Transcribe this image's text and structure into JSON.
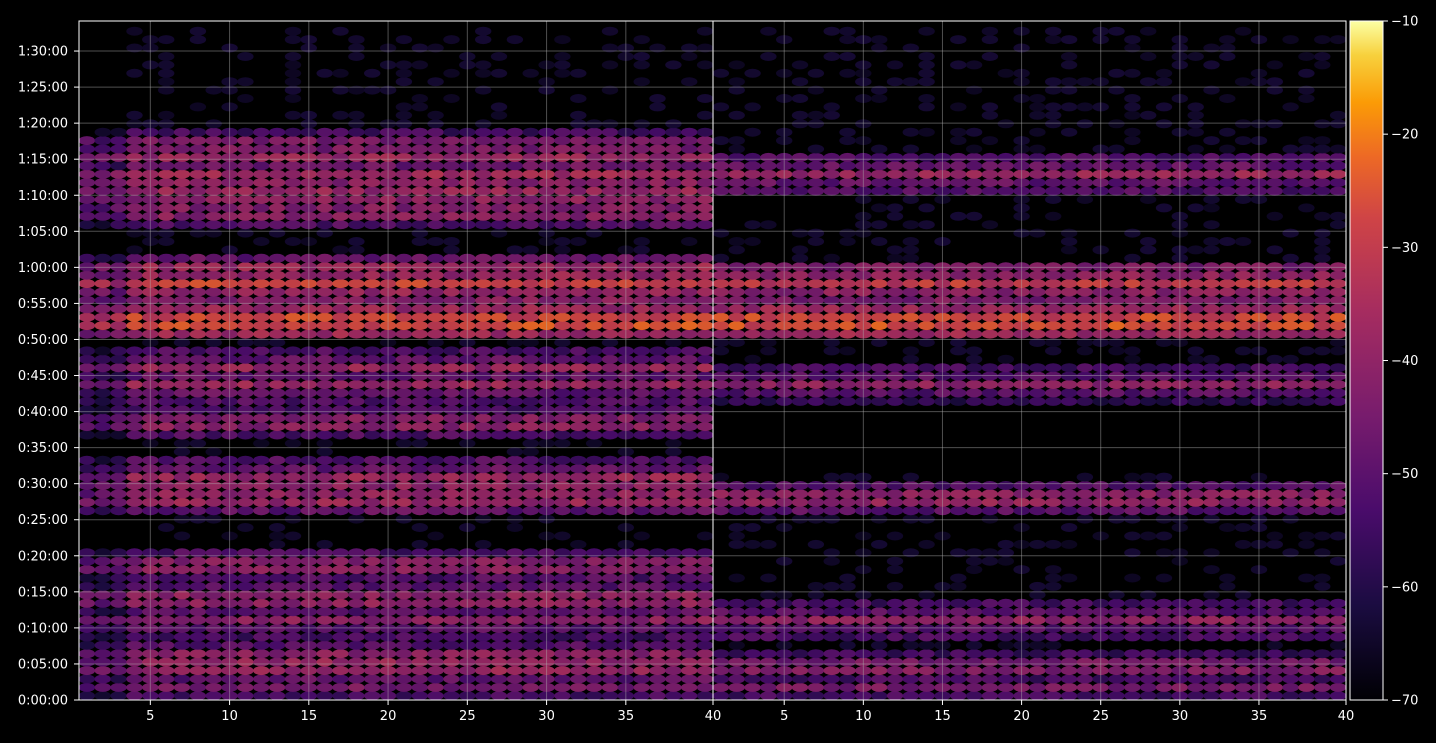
{
  "chart_data": {
    "type": "heatmap",
    "description_panels": 2,
    "panels": [
      {
        "name": "left",
        "x_ticks": [
          5,
          10,
          15,
          20,
          25,
          30,
          35,
          40
        ],
        "xlim": [
          1,
          40
        ],
        "high_rows": [
          {
            "t": 95,
            "v": -44
          },
          {
            "t": 258,
            "v": -38
          },
          {
            "t": 330,
            "v": -38
          },
          {
            "t": 660,
            "v": -40
          },
          {
            "t": 840,
            "v": -38
          },
          {
            "t": 1115,
            "v": -40
          },
          {
            "t": 1670,
            "v": -37
          },
          {
            "t": 1840,
            "v": -37
          },
          {
            "t": 2300,
            "v": -40
          },
          {
            "t": 2620,
            "v": -38
          },
          {
            "t": 2755,
            "v": -38
          },
          {
            "t": 3140,
            "v": -25
          },
          {
            "t": 3470,
            "v": -28
          },
          {
            "t": 3580,
            "v": -36
          },
          {
            "t": 4050,
            "v": -40
          },
          {
            "t": 4150,
            "v": -40
          },
          {
            "t": 4250,
            "v": -38
          },
          {
            "t": 4370,
            "v": -36
          },
          {
            "t": 4510,
            "v": -38
          },
          {
            "t": 4620,
            "v": -42
          }
        ]
      },
      {
        "name": "right",
        "x_ticks": [
          5,
          10,
          15,
          20,
          25,
          30,
          35,
          40
        ],
        "xlim": [
          1,
          40
        ],
        "high_rows": [
          {
            "t": 95,
            "v": -44
          },
          {
            "t": 258,
            "v": -42
          },
          {
            "t": 660,
            "v": -40
          },
          {
            "t": 1670,
            "v": -38
          },
          {
            "t": 2620,
            "v": -40
          },
          {
            "t": 3140,
            "v": -25
          },
          {
            "t": 3470,
            "v": -30
          },
          {
            "t": 4370,
            "v": -38
          }
        ]
      }
    ],
    "y_ticks": [
      "0:00:00",
      "0:05:00",
      "0:10:00",
      "0:15:00",
      "0:20:00",
      "0:25:00",
      "0:30:00",
      "0:35:00",
      "0:40:00",
      "0:45:00",
      "0:50:00",
      "0:55:00",
      "1:00:00",
      "1:05:00",
      "1:10:00",
      "1:15:00",
      "1:20:00",
      "1:25:00",
      "1:30:00"
    ],
    "ylim_seconds": [
      0,
      5650
    ],
    "colorbar": {
      "cmap": "inferno",
      "range": [
        -70,
        -10
      ],
      "ticks": [
        -10,
        -20,
        -30,
        -40,
        -50,
        -60,
        -70
      ],
      "tick_labels": [
        "−10",
        "−20",
        "−30",
        "−40",
        "−50",
        "−60",
        "−70"
      ]
    },
    "grid": true,
    "colors": {
      "background": "#000000",
      "axes": "#ffffff",
      "grid": "#b0b0b0"
    }
  }
}
